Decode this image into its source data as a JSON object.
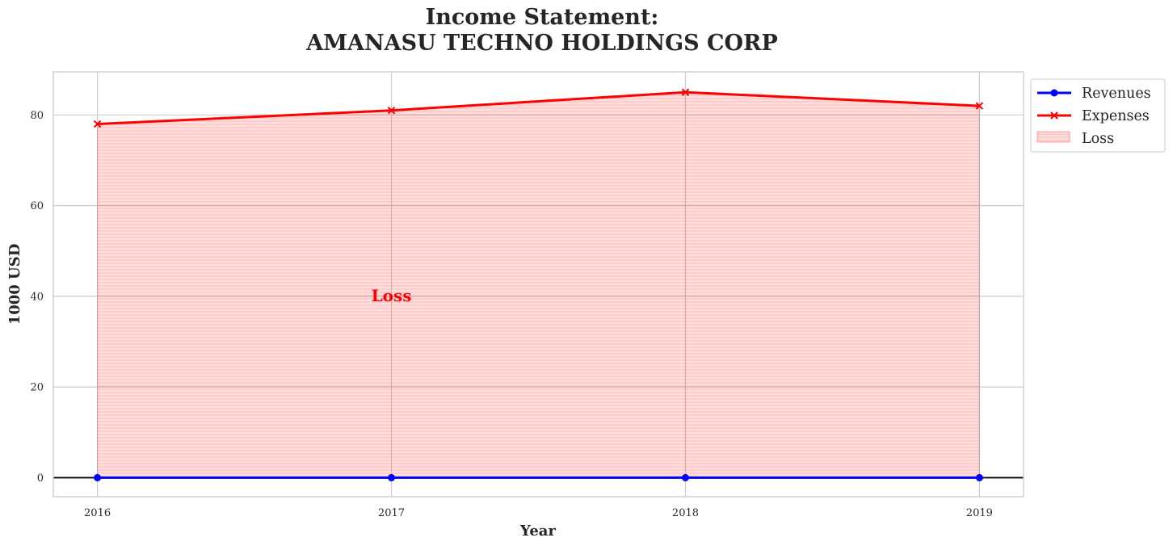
{
  "chart_data": {
    "type": "line",
    "title_line1": "Income Statement:",
    "title_line2": "AMANASU TECHNO HOLDINGS CORP",
    "xlabel": "Year",
    "ylabel": "1000 USD",
    "x": [
      2016,
      2017,
      2018,
      2019
    ],
    "x_tick_labels": [
      "2016",
      "2017",
      "2018",
      "2019"
    ],
    "y_ticks": [
      0,
      20,
      40,
      60,
      80
    ],
    "y_tick_labels": [
      "0",
      "20",
      "40",
      "60",
      "80"
    ],
    "xlim": [
      2015.85,
      2019.15
    ],
    "ylim": [
      -4.2,
      89.5
    ],
    "grid": true,
    "series": [
      {
        "name": "Revenues",
        "values": [
          0,
          0,
          0,
          0
        ],
        "color": "#0000ff",
        "marker": "circle"
      },
      {
        "name": "Expenses",
        "values": [
          78,
          81,
          85,
          82
        ],
        "color": "#ff0000",
        "marker": "x"
      }
    ],
    "fill": {
      "name": "Loss",
      "between": [
        "Revenues",
        "Expenses"
      ],
      "color": "#ff0000",
      "hatch": "horizontal"
    },
    "annotations": [
      {
        "text": "Loss",
        "x": 2017,
        "y": 40,
        "color": "#ff0000"
      }
    ],
    "legend": {
      "position": "outside-top-right",
      "entries": [
        "Revenues",
        "Expenses",
        "Loss"
      ]
    }
  }
}
